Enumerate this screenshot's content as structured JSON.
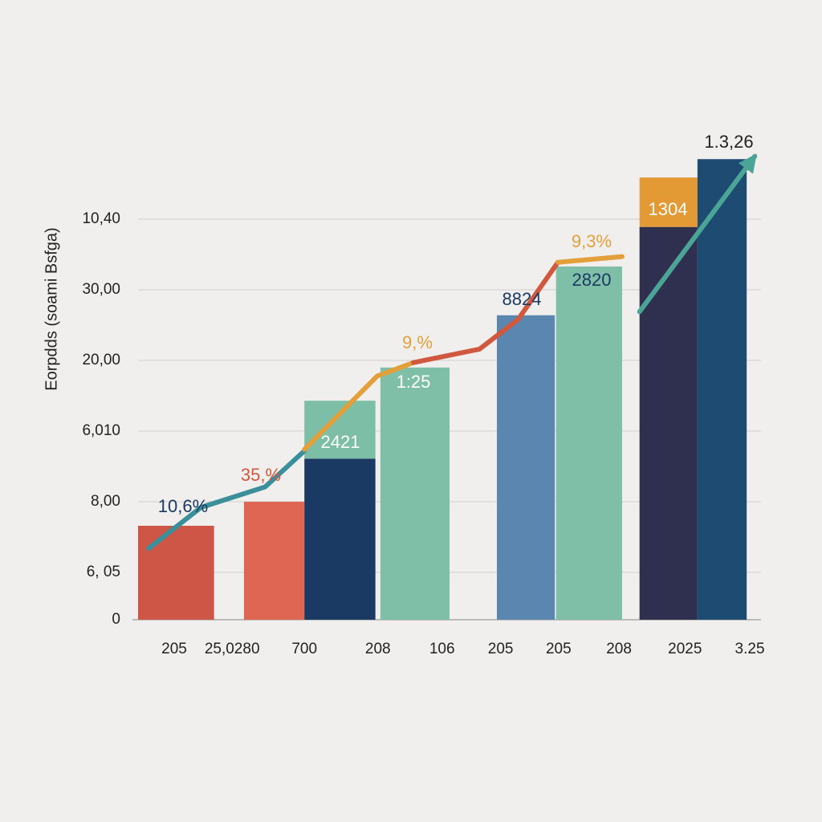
{
  "chart_data": {
    "type": "bar",
    "y_axis_label": "Eorpdds (soami Bsfga)",
    "xlim": [
      0,
      10
    ],
    "ylim": [
      0,
      7
    ],
    "yticks": [
      0,
      {
        "value": 0.67,
        "label": "6, 05"
      },
      {
        "value": 1.67,
        "label": "8,00"
      },
      {
        "value": 2.67,
        "label": "6,010"
      },
      {
        "value": 3.67,
        "label": "20,00"
      },
      {
        "value": 4.67,
        "label": "30,00"
      },
      {
        "value": 5.67,
        "label": "10,40"
      }
    ],
    "xticks": [
      {
        "value": 0.58,
        "label": "205"
      },
      {
        "value": 1.51,
        "label": "25,0280"
      },
      {
        "value": 2.67,
        "label": "700"
      },
      {
        "value": 3.85,
        "label": "208"
      },
      {
        "value": 4.88,
        "label": "106"
      },
      {
        "value": 5.82,
        "label": "205"
      },
      {
        "value": 6.75,
        "label": "205"
      },
      {
        "value": 7.72,
        "label": "208"
      },
      {
        "value": 8.78,
        "label": "2025"
      },
      {
        "value": 9.82,
        "label": "3.25"
      }
    ],
    "grid": true,
    "bars": [
      {
        "x": [
          0,
          1.22
        ],
        "segments": [
          {
            "value": 1.33,
            "color": "#cd5646"
          }
        ]
      },
      {
        "x": [
          1.7,
          2.67
        ],
        "segments": [
          {
            "value": 1.67,
            "color": "#de6653"
          }
        ]
      },
      {
        "x": [
          2.67,
          3.81
        ],
        "segments": [
          {
            "value": 2.28,
            "color": "#1b3a63"
          },
          {
            "value": 0.82,
            "color": "#7dbea6"
          }
        ]
      },
      {
        "x": [
          3.89,
          5.0
        ],
        "segments": [
          {
            "value": 3.57,
            "color": "#7fbfa8"
          }
        ]
      },
      {
        "x": [
          5.76,
          6.69
        ],
        "segments": [
          {
            "value": 4.31,
            "color": "#5b86b0"
          }
        ]
      },
      {
        "x": [
          6.71,
          7.77
        ],
        "segments": [
          {
            "value": 5.0,
            "color": "#7fbfa8"
          }
        ]
      },
      {
        "x": [
          8.05,
          8.98
        ],
        "segments": [
          {
            "value": 5.56,
            "color": "#2f2f50"
          },
          {
            "value": 0.7,
            "color": "#e39a35"
          }
        ]
      },
      {
        "x": [
          8.98,
          9.77
        ],
        "segments": [
          {
            "value": 6.52,
            "color": "#1d4b72"
          }
        ]
      }
    ],
    "lines": [
      {
        "color": "#3a8f9a",
        "x": [
          0.17,
          1.01,
          2.04,
          2.67
        ],
        "values": [
          1.01,
          1.59,
          1.88,
          2.39
        ]
      },
      {
        "color": "#e3a03a",
        "x": [
          2.67,
          3.84,
          4.42
        ],
        "values": [
          2.41,
          3.45,
          3.64
        ]
      },
      {
        "color": "#d0583f",
        "x": [
          4.42,
          5.48,
          6.1,
          6.74
        ],
        "values": [
          3.64,
          3.83,
          4.25,
          5.06
        ]
      },
      {
        "color": "#e3a03a",
        "x": [
          6.74,
          7.77
        ],
        "values": [
          5.06,
          5.14
        ]
      },
      {
        "color": "#4aa597",
        "x": [
          8.05,
          9.9
        ],
        "values": [
          4.36,
          6.56
        ]
      }
    ],
    "annotations": [
      "10,6%",
      "35,%",
      "2421",
      "9,%",
      "1:25",
      "8824",
      "9,3%",
      "2820",
      "1304",
      "1.3,26"
    ]
  }
}
